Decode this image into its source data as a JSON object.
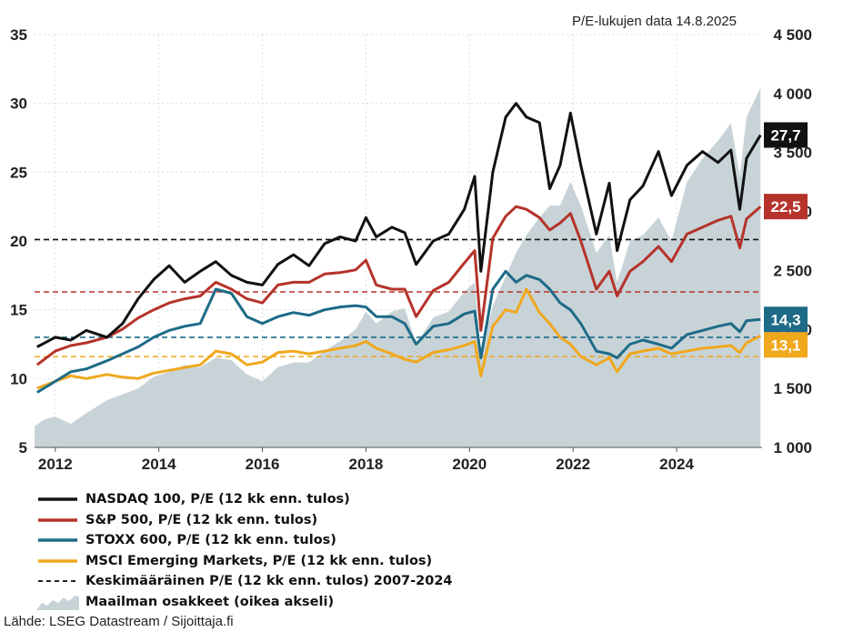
{
  "chart_data": {
    "type": "line",
    "note": "P/E-lukujen data 14.8.2025",
    "x_range": [
      2011.6,
      2025.65
    ],
    "x_ticks": [
      "2012",
      "2014",
      "2016",
      "2018",
      "2020",
      "2022",
      "2024"
    ],
    "y_left": {
      "range": [
        5,
        35
      ],
      "ticks": [
        "5",
        "10",
        "15",
        "20",
        "25",
        "30",
        "35"
      ]
    },
    "y_right": {
      "range": [
        1000,
        4500
      ],
      "ticks": [
        "1 000",
        "1 500",
        "2 000",
        "2 500",
        "3 000",
        "3 500",
        "4 000",
        "4 500"
      ]
    },
    "series": [
      {
        "name": "NASDAQ 100, P/E (12 kk enn. tulos)",
        "color": "#111111",
        "axis": "left",
        "end_label": "27,7",
        "points": [
          [
            2011.65,
            12.3
          ],
          [
            2012.0,
            13.0
          ],
          [
            2012.3,
            12.8
          ],
          [
            2012.6,
            13.5
          ],
          [
            2013.0,
            13.0
          ],
          [
            2013.3,
            14.0
          ],
          [
            2013.6,
            15.8
          ],
          [
            2013.9,
            17.2
          ],
          [
            2014.2,
            18.2
          ],
          [
            2014.5,
            17.0
          ],
          [
            2014.8,
            17.8
          ],
          [
            2015.1,
            18.5
          ],
          [
            2015.4,
            17.5
          ],
          [
            2015.7,
            17.0
          ],
          [
            2016.0,
            16.8
          ],
          [
            2016.3,
            18.3
          ],
          [
            2016.6,
            19.0
          ],
          [
            2016.9,
            18.2
          ],
          [
            2017.2,
            19.8
          ],
          [
            2017.5,
            20.3
          ],
          [
            2017.8,
            20.0
          ],
          [
            2018.0,
            21.7
          ],
          [
            2018.2,
            20.3
          ],
          [
            2018.5,
            21.0
          ],
          [
            2018.75,
            20.6
          ],
          [
            2018.97,
            18.3
          ],
          [
            2019.3,
            20.0
          ],
          [
            2019.6,
            20.5
          ],
          [
            2019.9,
            22.3
          ],
          [
            2020.1,
            24.7
          ],
          [
            2020.22,
            17.8
          ],
          [
            2020.45,
            25.0
          ],
          [
            2020.7,
            29.0
          ],
          [
            2020.9,
            30.0
          ],
          [
            2021.1,
            29.0
          ],
          [
            2021.35,
            28.6
          ],
          [
            2021.55,
            23.8
          ],
          [
            2021.75,
            25.5
          ],
          [
            2021.95,
            29.3
          ],
          [
            2022.15,
            25.5
          ],
          [
            2022.45,
            20.5
          ],
          [
            2022.7,
            24.2
          ],
          [
            2022.85,
            19.3
          ],
          [
            2023.1,
            23.0
          ],
          [
            2023.35,
            24.0
          ],
          [
            2023.65,
            26.5
          ],
          [
            2023.9,
            23.3
          ],
          [
            2024.2,
            25.5
          ],
          [
            2024.5,
            26.5
          ],
          [
            2024.8,
            25.7
          ],
          [
            2025.05,
            26.6
          ],
          [
            2025.22,
            22.3
          ],
          [
            2025.35,
            26.0
          ],
          [
            2025.62,
            27.7
          ]
        ]
      },
      {
        "name": "S&P 500, P/E (12 kk enn. tulos)",
        "color": "#b5332a",
        "axis": "left",
        "end_label": "22,5",
        "points": [
          [
            2011.65,
            11.0
          ],
          [
            2012.0,
            12.0
          ],
          [
            2012.3,
            12.4
          ],
          [
            2012.6,
            12.6
          ],
          [
            2013.0,
            13.0
          ],
          [
            2013.3,
            13.6
          ],
          [
            2013.6,
            14.4
          ],
          [
            2013.9,
            15.0
          ],
          [
            2014.2,
            15.5
          ],
          [
            2014.5,
            15.8
          ],
          [
            2014.8,
            16.0
          ],
          [
            2015.1,
            17.0
          ],
          [
            2015.4,
            16.5
          ],
          [
            2015.7,
            15.8
          ],
          [
            2016.0,
            15.5
          ],
          [
            2016.3,
            16.8
          ],
          [
            2016.6,
            17.0
          ],
          [
            2016.9,
            17.0
          ],
          [
            2017.2,
            17.6
          ],
          [
            2017.5,
            17.7
          ],
          [
            2017.8,
            17.9
          ],
          [
            2018.0,
            18.6
          ],
          [
            2018.2,
            16.8
          ],
          [
            2018.5,
            16.5
          ],
          [
            2018.75,
            16.5
          ],
          [
            2018.97,
            14.5
          ],
          [
            2019.3,
            16.4
          ],
          [
            2019.6,
            17.0
          ],
          [
            2019.9,
            18.4
          ],
          [
            2020.1,
            19.3
          ],
          [
            2020.22,
            13.5
          ],
          [
            2020.45,
            20.2
          ],
          [
            2020.7,
            21.8
          ],
          [
            2020.9,
            22.5
          ],
          [
            2021.1,
            22.3
          ],
          [
            2021.35,
            21.7
          ],
          [
            2021.55,
            20.8
          ],
          [
            2021.75,
            21.3
          ],
          [
            2021.95,
            22.0
          ],
          [
            2022.15,
            20.0
          ],
          [
            2022.45,
            16.5
          ],
          [
            2022.7,
            17.8
          ],
          [
            2022.85,
            16.0
          ],
          [
            2023.1,
            17.8
          ],
          [
            2023.35,
            18.5
          ],
          [
            2023.65,
            19.6
          ],
          [
            2023.9,
            18.5
          ],
          [
            2024.2,
            20.5
          ],
          [
            2024.5,
            21.0
          ],
          [
            2024.8,
            21.5
          ],
          [
            2025.05,
            21.8
          ],
          [
            2025.22,
            19.5
          ],
          [
            2025.35,
            21.6
          ],
          [
            2025.62,
            22.5
          ]
        ]
      },
      {
        "name": "STOXX 600, P/E (12 kk enn. tulos)",
        "color": "#1d6b87",
        "axis": "left",
        "end_label": "14,3",
        "points": [
          [
            2011.65,
            9.0
          ],
          [
            2012.0,
            9.8
          ],
          [
            2012.3,
            10.5
          ],
          [
            2012.6,
            10.7
          ],
          [
            2013.0,
            11.3
          ],
          [
            2013.3,
            11.8
          ],
          [
            2013.6,
            12.3
          ],
          [
            2013.9,
            13.0
          ],
          [
            2014.2,
            13.5
          ],
          [
            2014.5,
            13.8
          ],
          [
            2014.8,
            14.0
          ],
          [
            2015.1,
            16.5
          ],
          [
            2015.4,
            16.2
          ],
          [
            2015.7,
            14.5
          ],
          [
            2016.0,
            14.0
          ],
          [
            2016.3,
            14.5
          ],
          [
            2016.6,
            14.8
          ],
          [
            2016.9,
            14.6
          ],
          [
            2017.2,
            15.0
          ],
          [
            2017.5,
            15.2
          ],
          [
            2017.8,
            15.3
          ],
          [
            2018.0,
            15.2
          ],
          [
            2018.2,
            14.5
          ],
          [
            2018.5,
            14.5
          ],
          [
            2018.75,
            14.0
          ],
          [
            2018.97,
            12.5
          ],
          [
            2019.3,
            13.8
          ],
          [
            2019.6,
            14.0
          ],
          [
            2019.9,
            14.7
          ],
          [
            2020.1,
            14.9
          ],
          [
            2020.22,
            11.5
          ],
          [
            2020.45,
            16.5
          ],
          [
            2020.7,
            17.8
          ],
          [
            2020.9,
            17.0
          ],
          [
            2021.1,
            17.5
          ],
          [
            2021.35,
            17.2
          ],
          [
            2021.55,
            16.5
          ],
          [
            2021.75,
            15.5
          ],
          [
            2021.95,
            15.0
          ],
          [
            2022.15,
            14.0
          ],
          [
            2022.45,
            12.0
          ],
          [
            2022.7,
            11.8
          ],
          [
            2022.85,
            11.5
          ],
          [
            2023.1,
            12.5
          ],
          [
            2023.35,
            12.8
          ],
          [
            2023.65,
            12.5
          ],
          [
            2023.9,
            12.2
          ],
          [
            2024.2,
            13.2
          ],
          [
            2024.5,
            13.5
          ],
          [
            2024.8,
            13.8
          ],
          [
            2025.05,
            14.0
          ],
          [
            2025.22,
            13.4
          ],
          [
            2025.35,
            14.2
          ],
          [
            2025.62,
            14.3
          ]
        ]
      },
      {
        "name": "MSCI Emerging Markets, P/E (12 kk enn. tulos)",
        "color": "#f0a81c",
        "axis": "left",
        "end_label": "13,1",
        "points": [
          [
            2011.65,
            9.3
          ],
          [
            2012.0,
            9.8
          ],
          [
            2012.3,
            10.2
          ],
          [
            2012.6,
            10.0
          ],
          [
            2013.0,
            10.3
          ],
          [
            2013.3,
            10.1
          ],
          [
            2013.6,
            10.0
          ],
          [
            2013.9,
            10.4
          ],
          [
            2014.2,
            10.6
          ],
          [
            2014.5,
            10.8
          ],
          [
            2014.8,
            11.0
          ],
          [
            2015.1,
            12.0
          ],
          [
            2015.4,
            11.8
          ],
          [
            2015.7,
            11.0
          ],
          [
            2016.0,
            11.2
          ],
          [
            2016.3,
            11.9
          ],
          [
            2016.6,
            12.0
          ],
          [
            2016.9,
            11.8
          ],
          [
            2017.2,
            12.0
          ],
          [
            2017.5,
            12.2
          ],
          [
            2017.8,
            12.4
          ],
          [
            2018.0,
            12.7
          ],
          [
            2018.2,
            12.2
          ],
          [
            2018.5,
            11.8
          ],
          [
            2018.75,
            11.4
          ],
          [
            2018.97,
            11.2
          ],
          [
            2019.3,
            11.9
          ],
          [
            2019.6,
            12.1
          ],
          [
            2019.9,
            12.4
          ],
          [
            2020.1,
            12.7
          ],
          [
            2020.22,
            10.2
          ],
          [
            2020.45,
            13.8
          ],
          [
            2020.7,
            15.0
          ],
          [
            2020.9,
            14.8
          ],
          [
            2021.1,
            16.5
          ],
          [
            2021.35,
            14.8
          ],
          [
            2021.55,
            14.0
          ],
          [
            2021.75,
            13.0
          ],
          [
            2021.95,
            12.5
          ],
          [
            2022.15,
            11.6
          ],
          [
            2022.45,
            11.0
          ],
          [
            2022.7,
            11.5
          ],
          [
            2022.85,
            10.5
          ],
          [
            2023.1,
            11.8
          ],
          [
            2023.35,
            12.0
          ],
          [
            2023.65,
            12.2
          ],
          [
            2023.9,
            11.8
          ],
          [
            2024.2,
            12.0
          ],
          [
            2024.5,
            12.2
          ],
          [
            2024.8,
            12.3
          ],
          [
            2025.05,
            12.4
          ],
          [
            2025.22,
            11.9
          ],
          [
            2025.35,
            12.6
          ],
          [
            2025.62,
            13.1
          ]
        ]
      },
      {
        "name": "Maailman osakkeet (oikea akseli)",
        "color": "#c8d3d8",
        "axis": "right",
        "type": "area",
        "points": [
          [
            2011.6,
            1180
          ],
          [
            2011.8,
            1240
          ],
          [
            2012.0,
            1260
          ],
          [
            2012.3,
            1200
          ],
          [
            2012.6,
            1290
          ],
          [
            2013.0,
            1400
          ],
          [
            2013.3,
            1450
          ],
          [
            2013.6,
            1500
          ],
          [
            2013.9,
            1600
          ],
          [
            2014.2,
            1640
          ],
          [
            2014.5,
            1700
          ],
          [
            2014.8,
            1680
          ],
          [
            2015.1,
            1760
          ],
          [
            2015.4,
            1740
          ],
          [
            2015.7,
            1620
          ],
          [
            2016.0,
            1560
          ],
          [
            2016.3,
            1680
          ],
          [
            2016.6,
            1720
          ],
          [
            2016.9,
            1720
          ],
          [
            2017.2,
            1820
          ],
          [
            2017.5,
            1900
          ],
          [
            2017.8,
            2000
          ],
          [
            2018.0,
            2150
          ],
          [
            2018.2,
            2050
          ],
          [
            2018.5,
            2150
          ],
          [
            2018.75,
            2180
          ],
          [
            2018.97,
            1880
          ],
          [
            2019.3,
            2100
          ],
          [
            2019.6,
            2150
          ],
          [
            2019.9,
            2320
          ],
          [
            2020.1,
            2400
          ],
          [
            2020.22,
            1800
          ],
          [
            2020.45,
            2200
          ],
          [
            2020.7,
            2450
          ],
          [
            2020.9,
            2650
          ],
          [
            2021.1,
            2800
          ],
          [
            2021.35,
            2950
          ],
          [
            2021.55,
            3050
          ],
          [
            2021.75,
            3050
          ],
          [
            2021.95,
            3250
          ],
          [
            2022.15,
            3050
          ],
          [
            2022.45,
            2650
          ],
          [
            2022.7,
            2800
          ],
          [
            2022.85,
            2400
          ],
          [
            2023.1,
            2750
          ],
          [
            2023.35,
            2800
          ],
          [
            2023.65,
            2950
          ],
          [
            2023.9,
            2750
          ],
          [
            2024.2,
            3250
          ],
          [
            2024.5,
            3450
          ],
          [
            2024.8,
            3600
          ],
          [
            2025.05,
            3750
          ],
          [
            2025.22,
            3300
          ],
          [
            2025.35,
            3800
          ],
          [
            2025.62,
            4050
          ]
        ]
      }
    ],
    "averages": [
      {
        "name": "NASDAQ 100",
        "value": 20.1,
        "color": "#111111"
      },
      {
        "name": "S&P 500",
        "value": 16.3,
        "color": "#b5332a"
      },
      {
        "name": "STOXX 600",
        "value": 13.0,
        "color": "#1d6b87"
      },
      {
        "name": "MSCI Emerging Markets",
        "value": 11.6,
        "color": "#f0a81c"
      }
    ],
    "legend": [
      {
        "label": "NASDAQ 100, P/E (12 kk enn. tulos)",
        "kind": "line",
        "color": "#111111"
      },
      {
        "label": "S&P 500, P/E (12 kk enn. tulos)",
        "kind": "line",
        "color": "#b5332a"
      },
      {
        "label": "STOXX 600, P/E (12 kk enn. tulos)",
        "kind": "line",
        "color": "#1d6b87"
      },
      {
        "label": "MSCI Emerging Markets, P/E (12 kk enn. tulos)",
        "kind": "line",
        "color": "#f0a81c"
      },
      {
        "label": "Keskimääräinen P/E (12 kk enn. tulos) 2007-2024",
        "kind": "dashed",
        "color": "#222222"
      },
      {
        "label": "Maailman osakkeet (oikea akseli)",
        "kind": "area",
        "color": "#c8d3d8"
      }
    ],
    "source": "Lähde: LSEG Datastream / Sijoittaja.fi"
  }
}
